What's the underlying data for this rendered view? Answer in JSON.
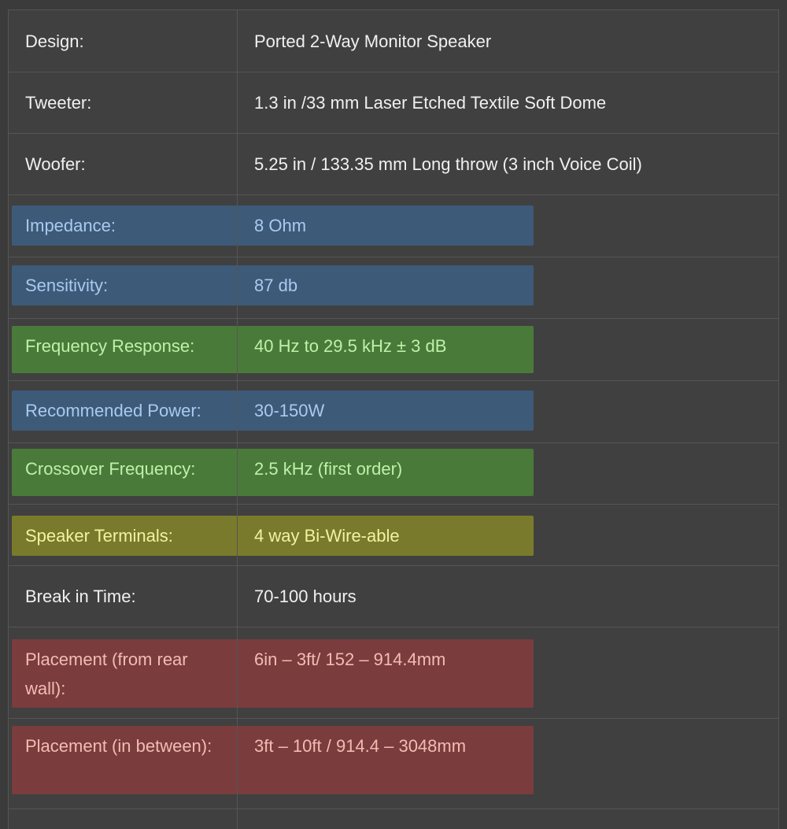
{
  "colors": {
    "blue": {
      "bg": "#3d5a78",
      "text": "#a9caf0"
    },
    "green": {
      "bg": "#4a7a3a",
      "text": "#bdf2a8"
    },
    "olive": {
      "bg": "#7a7a2c",
      "text": "#f2f2a0"
    },
    "red": {
      "bg": "#7a3c3d",
      "text": "#f2bcb2"
    },
    "none": {
      "bg": "transparent",
      "text": "#f0f0f0"
    }
  },
  "specs": [
    {
      "label": "Design:",
      "value": "Ported 2-Way Monitor Speaker",
      "highlight": "none"
    },
    {
      "label": "Tweeter:",
      "value": "1.3 in /33 mm Laser Etched Textile Soft Dome",
      "highlight": "none"
    },
    {
      "label": "Woofer:",
      "value": "5.25 in / 133.35 mm Long throw (3 inch Voice Coil)",
      "highlight": "none"
    },
    {
      "label": "Impedance:",
      "value": "8 Ohm",
      "highlight": "blue"
    },
    {
      "label": "Sensitivity:",
      "value": "87 db",
      "highlight": "blue"
    },
    {
      "label": "Frequency Response:",
      "value": "40 Hz to 29.5 kHz ± 3 dB",
      "highlight": "green"
    },
    {
      "label": "Recommended Power:",
      "value": "30-150W",
      "highlight": "blue"
    },
    {
      "label": "Crossover Frequency:",
      "value": "2.5 kHz (first order)",
      "highlight": "green"
    },
    {
      "label": "Speaker Terminals:",
      "value": "4 way Bi-Wire-able",
      "highlight": "olive"
    },
    {
      "label": "Break in Time:",
      "value": "70-100 hours",
      "highlight": "none"
    },
    {
      "label": "Placement (from rear wall):",
      "value": "6in – 3ft/ 152 – 914.4mm",
      "highlight": "red"
    },
    {
      "label": "Placement (in between):",
      "value": "3ft – 10ft / 914.4 – 3048mm",
      "highlight": "red"
    }
  ]
}
